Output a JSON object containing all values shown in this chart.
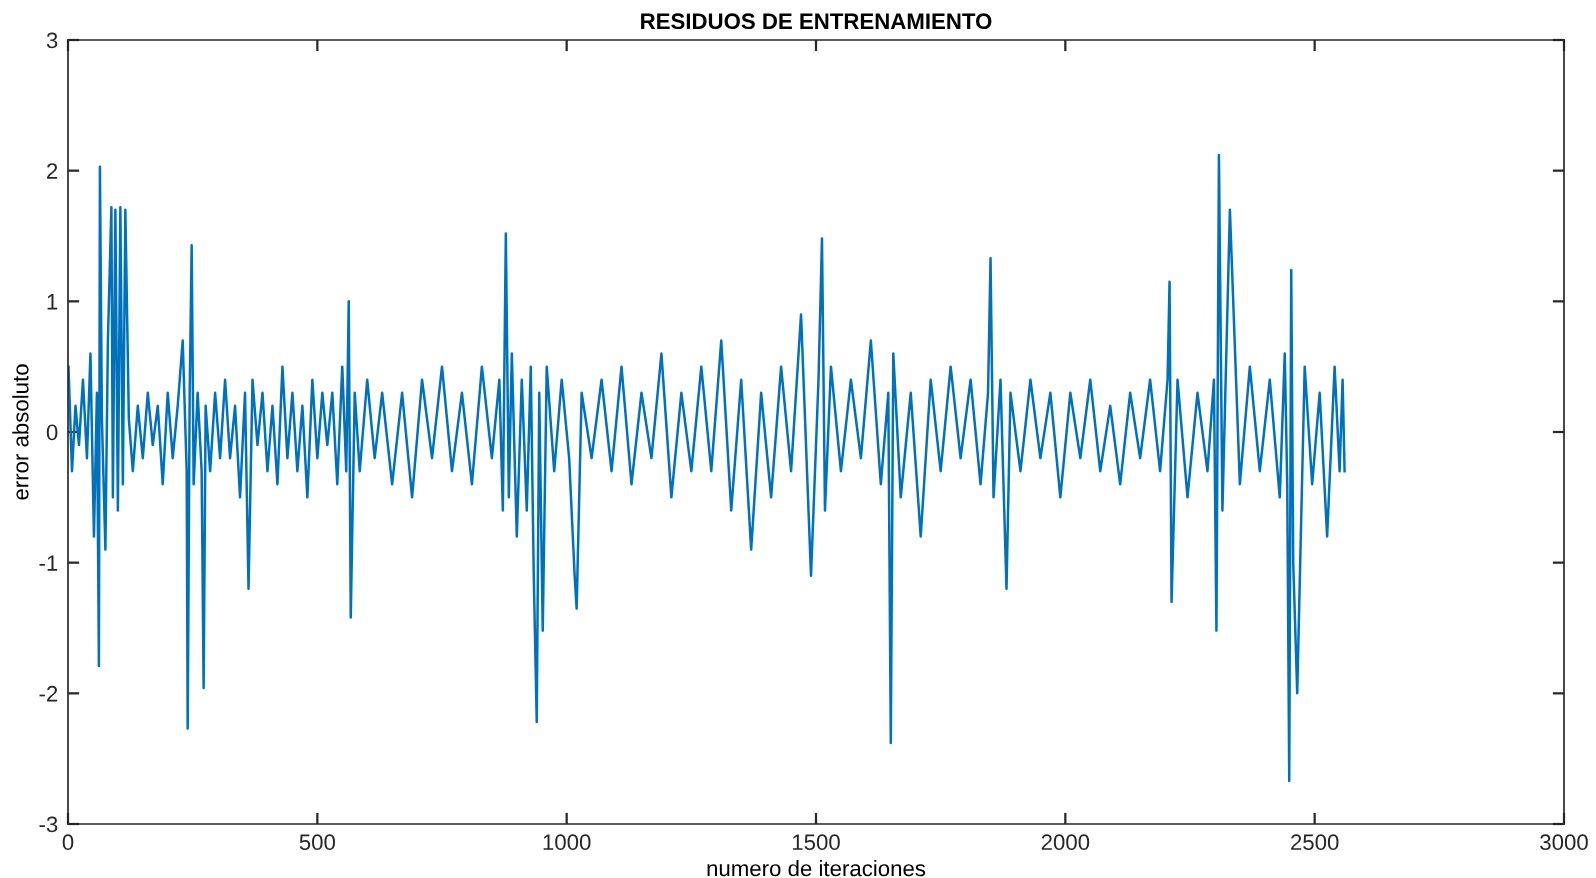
{
  "chart_data": {
    "type": "line",
    "title": "RESIDUOS DE ENTRENAMIENTO",
    "xlabel": "numero de iteraciones",
    "ylabel": "error absoluto",
    "xlim": [
      0,
      3000
    ],
    "ylim": [
      -3,
      3
    ],
    "xticks": [
      0,
      500,
      1000,
      1500,
      2000,
      2500,
      3000
    ],
    "yticks": [
      -3,
      -2,
      -1,
      0,
      1,
      2,
      3
    ],
    "grid": false,
    "series": [
      {
        "color": "#0072bd",
        "x": [
          1,
          8,
          15,
          22,
          30,
          38,
          45,
          52,
          58,
          62,
          64,
          68,
          75,
          80,
          87,
          90,
          95,
          100,
          105,
          110,
          115,
          122,
          130,
          140,
          150,
          160,
          170,
          180,
          190,
          200,
          210,
          220,
          230,
          238,
          240,
          244,
          248,
          252,
          260,
          268,
          272,
          276,
          285,
          295,
          305,
          315,
          325,
          335,
          345,
          355,
          362,
          370,
          380,
          390,
          400,
          410,
          420,
          430,
          440,
          450,
          460,
          470,
          480,
          490,
          500,
          510,
          520,
          530,
          540,
          550,
          558,
          563,
          567,
          575,
          585,
          600,
          615,
          630,
          650,
          670,
          690,
          710,
          730,
          750,
          770,
          790,
          810,
          830,
          850,
          865,
          872,
          878,
          884,
          890,
          900,
          910,
          920,
          928,
          934,
          940,
          945,
          952,
          960,
          975,
          990,
          1005,
          1016,
          1020,
          1030,
          1050,
          1070,
          1090,
          1110,
          1130,
          1150,
          1170,
          1190,
          1210,
          1230,
          1250,
          1270,
          1290,
          1310,
          1330,
          1350,
          1370,
          1390,
          1410,
          1430,
          1450,
          1470,
          1490,
          1505,
          1512,
          1518,
          1530,
          1550,
          1570,
          1590,
          1610,
          1630,
          1645,
          1650,
          1655,
          1670,
          1690,
          1710,
          1730,
          1750,
          1770,
          1790,
          1810,
          1830,
          1845,
          1850,
          1856,
          1870,
          1882,
          1890,
          1910,
          1930,
          1950,
          1970,
          1990,
          2010,
          2030,
          2050,
          2070,
          2090,
          2110,
          2130,
          2150,
          2170,
          2190,
          2205,
          2209,
          2213,
          2225,
          2245,
          2265,
          2285,
          2298,
          2303,
          2308,
          2315,
          2330,
          2350,
          2370,
          2390,
          2410,
          2430,
          2440,
          2445,
          2449,
          2453,
          2457,
          2465,
          2480,
          2495,
          2510,
          2525,
          2540,
          2550,
          2556,
          2560
        ],
        "values": [
          0.5,
          -0.3,
          0.2,
          -0.1,
          0.4,
          -0.2,
          0.6,
          -0.8,
          0.3,
          -1.79,
          2.03,
          0.1,
          -0.9,
          0.7,
          1.72,
          -0.5,
          1.7,
          -0.6,
          1.72,
          -0.4,
          1.7,
          0.1,
          -0.3,
          0.2,
          -0.2,
          0.3,
          -0.1,
          0.2,
          -0.4,
          0.3,
          -0.2,
          0.2,
          0.7,
          -0.3,
          -2.27,
          0.3,
          1.43,
          -0.4,
          0.3,
          -0.3,
          -1.96,
          0.2,
          -0.3,
          0.3,
          -0.2,
          0.4,
          -0.2,
          0.2,
          -0.5,
          0.3,
          -1.2,
          0.4,
          -0.1,
          0.3,
          -0.3,
          0.2,
          -0.4,
          0.5,
          -0.2,
          0.3,
          -0.3,
          0.2,
          -0.5,
          0.4,
          -0.2,
          0.3,
          -0.1,
          0.3,
          -0.4,
          0.5,
          -0.3,
          1.0,
          -1.42,
          0.3,
          -0.3,
          0.4,
          -0.2,
          0.3,
          -0.4,
          0.3,
          -0.5,
          0.4,
          -0.2,
          0.5,
          -0.3,
          0.3,
          -0.4,
          0.5,
          -0.2,
          0.4,
          -0.6,
          1.52,
          -0.5,
          0.6,
          -0.8,
          0.4,
          -0.6,
          0.5,
          -1.1,
          -2.22,
          0.3,
          -1.52,
          0.5,
          -0.3,
          0.4,
          -0.2,
          -1.1,
          -1.35,
          0.3,
          -0.2,
          0.4,
          -0.3,
          0.5,
          -0.4,
          0.3,
          -0.2,
          0.6,
          -0.5,
          0.3,
          -0.3,
          0.5,
          -0.3,
          0.7,
          -0.6,
          0.4,
          -0.9,
          0.3,
          -0.5,
          0.5,
          -0.3,
          0.9,
          -1.1,
          0.4,
          1.48,
          -0.6,
          0.5,
          -0.3,
          0.4,
          -0.2,
          0.7,
          -0.4,
          0.3,
          -2.38,
          0.6,
          -0.5,
          0.3,
          -0.8,
          0.4,
          -0.3,
          0.5,
          -0.2,
          0.4,
          -0.4,
          0.3,
          1.33,
          -0.5,
          0.4,
          -1.2,
          0.3,
          -0.3,
          0.4,
          -0.2,
          0.3,
          -0.5,
          0.3,
          -0.2,
          0.4,
          -0.3,
          0.2,
          -0.4,
          0.3,
          -0.2,
          0.4,
          -0.3,
          0.4,
          1.15,
          -1.3,
          0.4,
          -0.5,
          0.3,
          -0.3,
          0.4,
          -1.52,
          2.12,
          -0.6,
          1.7,
          -0.4,
          0.5,
          -0.3,
          0.4,
          -0.5,
          0.6,
          -0.4,
          -2.67,
          1.24,
          -1.0,
          -2.0,
          0.5,
          -0.4,
          0.3,
          -0.8,
          0.5,
          -0.3,
          0.4,
          -0.3
        ]
      }
    ]
  }
}
